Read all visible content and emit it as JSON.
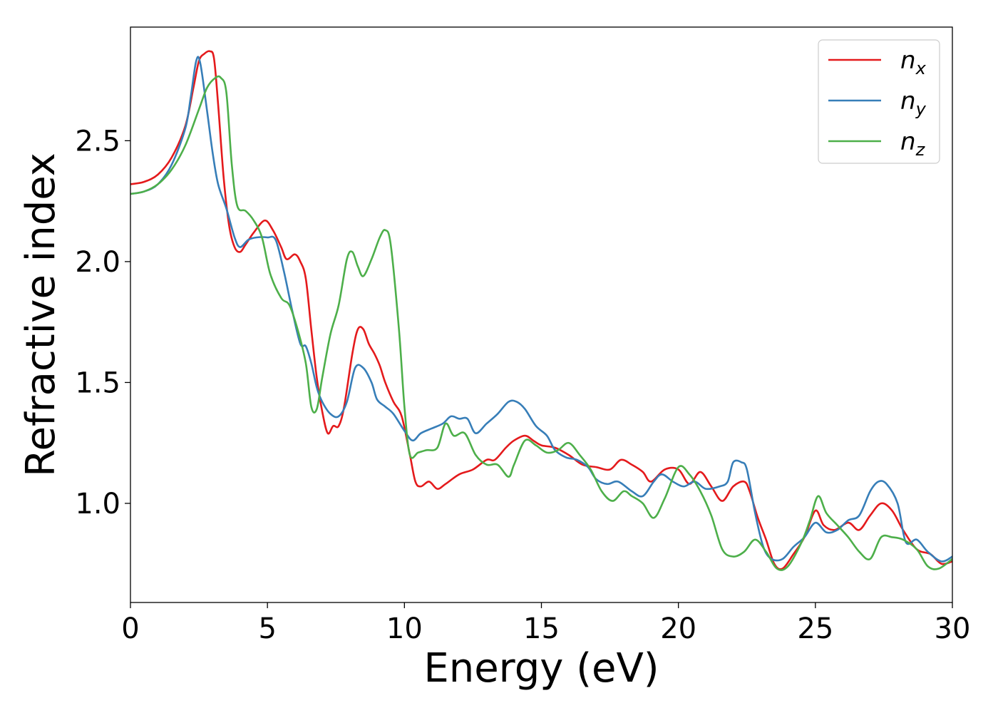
{
  "chart_data": {
    "type": "line",
    "title": "",
    "xlabel": "Energy (eV)",
    "ylabel": "Refractive index",
    "xlim": [
      0,
      30
    ],
    "ylim": [
      0.59,
      2.97
    ],
    "xticks": [
      0,
      5,
      10,
      15,
      20,
      25,
      30
    ],
    "yticks": [
      1.0,
      1.5,
      2.0,
      2.5
    ],
    "xtick_labels": [
      "0",
      "5",
      "10",
      "15",
      "20",
      "25",
      "30"
    ],
    "ytick_labels": [
      "1.0",
      "1.5",
      "2.0",
      "2.5"
    ],
    "grid": false,
    "legend_position": "top-right",
    "series": [
      {
        "name": "n",
        "subscript": "x",
        "color": "#e41a1c",
        "points": [
          [
            0,
            2.32
          ],
          [
            0.5,
            2.33
          ],
          [
            1.0,
            2.36
          ],
          [
            1.5,
            2.43
          ],
          [
            2.0,
            2.56
          ],
          [
            2.3,
            2.72
          ],
          [
            2.5,
            2.83
          ],
          [
            2.7,
            2.86
          ],
          [
            2.9,
            2.87
          ],
          [
            3.05,
            2.84
          ],
          [
            3.2,
            2.65
          ],
          [
            3.4,
            2.35
          ],
          [
            3.6,
            2.15
          ],
          [
            3.8,
            2.06
          ],
          [
            4.0,
            2.04
          ],
          [
            4.2,
            2.07
          ],
          [
            4.5,
            2.12
          ],
          [
            4.9,
            2.17
          ],
          [
            5.2,
            2.13
          ],
          [
            5.5,
            2.06
          ],
          [
            5.7,
            2.01
          ],
          [
            6.0,
            2.03
          ],
          [
            6.2,
            2.0
          ],
          [
            6.4,
            1.93
          ],
          [
            6.6,
            1.72
          ],
          [
            6.8,
            1.52
          ],
          [
            7.0,
            1.38
          ],
          [
            7.2,
            1.29
          ],
          [
            7.4,
            1.32
          ],
          [
            7.6,
            1.32
          ],
          [
            7.8,
            1.4
          ],
          [
            8.1,
            1.62
          ],
          [
            8.3,
            1.72
          ],
          [
            8.5,
            1.72
          ],
          [
            8.7,
            1.66
          ],
          [
            8.9,
            1.62
          ],
          [
            9.1,
            1.57
          ],
          [
            9.3,
            1.5
          ],
          [
            9.6,
            1.42
          ],
          [
            9.9,
            1.36
          ],
          [
            10.2,
            1.2
          ],
          [
            10.4,
            1.09
          ],
          [
            10.6,
            1.07
          ],
          [
            10.9,
            1.09
          ],
          [
            11.2,
            1.06
          ],
          [
            11.5,
            1.08
          ],
          [
            12.0,
            1.12
          ],
          [
            12.5,
            1.14
          ],
          [
            13.0,
            1.18
          ],
          [
            13.3,
            1.18
          ],
          [
            13.7,
            1.23
          ],
          [
            14.0,
            1.26
          ],
          [
            14.4,
            1.28
          ],
          [
            14.7,
            1.26
          ],
          [
            15.0,
            1.24
          ],
          [
            15.5,
            1.23
          ],
          [
            16.0,
            1.2
          ],
          [
            16.5,
            1.16
          ],
          [
            17.0,
            1.15
          ],
          [
            17.5,
            1.14
          ],
          [
            17.9,
            1.18
          ],
          [
            18.3,
            1.16
          ],
          [
            18.7,
            1.13
          ],
          [
            19.0,
            1.09
          ],
          [
            19.5,
            1.14
          ],
          [
            20.0,
            1.14
          ],
          [
            20.4,
            1.08
          ],
          [
            20.8,
            1.13
          ],
          [
            21.2,
            1.07
          ],
          [
            21.6,
            1.01
          ],
          [
            22.0,
            1.07
          ],
          [
            22.4,
            1.09
          ],
          [
            22.6,
            1.05
          ],
          [
            22.9,
            0.94
          ],
          [
            23.2,
            0.85
          ],
          [
            23.5,
            0.75
          ],
          [
            23.8,
            0.73
          ],
          [
            24.2,
            0.79
          ],
          [
            24.6,
            0.86
          ],
          [
            25.0,
            0.97
          ],
          [
            25.3,
            0.91
          ],
          [
            25.7,
            0.89
          ],
          [
            26.2,
            0.92
          ],
          [
            26.6,
            0.89
          ],
          [
            27.0,
            0.95
          ],
          [
            27.4,
            1.0
          ],
          [
            27.8,
            0.97
          ],
          [
            28.2,
            0.89
          ],
          [
            28.7,
            0.81
          ],
          [
            29.2,
            0.79
          ],
          [
            29.6,
            0.75
          ],
          [
            30.0,
            0.76
          ]
        ]
      },
      {
        "name": "n",
        "subscript": "y",
        "color": "#377eb8",
        "points": [
          [
            0,
            2.28
          ],
          [
            0.5,
            2.29
          ],
          [
            1.0,
            2.32
          ],
          [
            1.5,
            2.4
          ],
          [
            2.0,
            2.55
          ],
          [
            2.2,
            2.68
          ],
          [
            2.4,
            2.83
          ],
          [
            2.55,
            2.82
          ],
          [
            2.8,
            2.62
          ],
          [
            3.0,
            2.45
          ],
          [
            3.2,
            2.32
          ],
          [
            3.5,
            2.22
          ],
          [
            3.8,
            2.1
          ],
          [
            4.0,
            2.06
          ],
          [
            4.3,
            2.09
          ],
          [
            4.6,
            2.1
          ],
          [
            5.0,
            2.1
          ],
          [
            5.3,
            2.09
          ],
          [
            5.6,
            1.96
          ],
          [
            5.9,
            1.8
          ],
          [
            6.2,
            1.66
          ],
          [
            6.4,
            1.65
          ],
          [
            6.6,
            1.58
          ],
          [
            6.8,
            1.48
          ],
          [
            7.0,
            1.42
          ],
          [
            7.3,
            1.37
          ],
          [
            7.6,
            1.36
          ],
          [
            7.9,
            1.42
          ],
          [
            8.2,
            1.56
          ],
          [
            8.5,
            1.56
          ],
          [
            8.8,
            1.5
          ],
          [
            9.0,
            1.43
          ],
          [
            9.3,
            1.4
          ],
          [
            9.6,
            1.37
          ],
          [
            10.0,
            1.3
          ],
          [
            10.3,
            1.26
          ],
          [
            10.6,
            1.29
          ],
          [
            11.0,
            1.31
          ],
          [
            11.4,
            1.33
          ],
          [
            11.7,
            1.36
          ],
          [
            12.0,
            1.35
          ],
          [
            12.3,
            1.35
          ],
          [
            12.6,
            1.29
          ],
          [
            13.0,
            1.33
          ],
          [
            13.4,
            1.37
          ],
          [
            13.8,
            1.42
          ],
          [
            14.1,
            1.42
          ],
          [
            14.4,
            1.39
          ],
          [
            14.8,
            1.32
          ],
          [
            15.2,
            1.28
          ],
          [
            15.5,
            1.22
          ],
          [
            15.9,
            1.19
          ],
          [
            16.3,
            1.18
          ],
          [
            16.7,
            1.15
          ],
          [
            17.0,
            1.1
          ],
          [
            17.4,
            1.08
          ],
          [
            17.8,
            1.09
          ],
          [
            18.3,
            1.05
          ],
          [
            18.7,
            1.03
          ],
          [
            19.1,
            1.09
          ],
          [
            19.4,
            1.12
          ],
          [
            19.8,
            1.09
          ],
          [
            20.2,
            1.07
          ],
          [
            20.6,
            1.09
          ],
          [
            21.0,
            1.06
          ],
          [
            21.5,
            1.07
          ],
          [
            21.8,
            1.09
          ],
          [
            22.0,
            1.17
          ],
          [
            22.3,
            1.17
          ],
          [
            22.5,
            1.14
          ],
          [
            22.8,
            0.96
          ],
          [
            23.1,
            0.82
          ],
          [
            23.4,
            0.77
          ],
          [
            23.8,
            0.77
          ],
          [
            24.2,
            0.82
          ],
          [
            24.6,
            0.86
          ],
          [
            25.0,
            0.92
          ],
          [
            25.4,
            0.88
          ],
          [
            25.8,
            0.89
          ],
          [
            26.2,
            0.93
          ],
          [
            26.6,
            0.95
          ],
          [
            27.0,
            1.05
          ],
          [
            27.3,
            1.09
          ],
          [
            27.6,
            1.08
          ],
          [
            28.0,
            1.0
          ],
          [
            28.3,
            0.84
          ],
          [
            28.7,
            0.85
          ],
          [
            29.1,
            0.8
          ],
          [
            29.6,
            0.76
          ],
          [
            30.0,
            0.78
          ]
        ]
      },
      {
        "name": "n",
        "subscript": "z",
        "color": "#4daf4a",
        "points": [
          [
            0,
            2.28
          ],
          [
            0.5,
            2.29
          ],
          [
            1.0,
            2.32
          ],
          [
            1.5,
            2.38
          ],
          [
            2.0,
            2.48
          ],
          [
            2.5,
            2.63
          ],
          [
            2.8,
            2.72
          ],
          [
            3.1,
            2.76
          ],
          [
            3.3,
            2.76
          ],
          [
            3.5,
            2.7
          ],
          [
            3.7,
            2.4
          ],
          [
            3.9,
            2.23
          ],
          [
            4.2,
            2.21
          ],
          [
            4.5,
            2.17
          ],
          [
            4.8,
            2.1
          ],
          [
            5.1,
            1.95
          ],
          [
            5.5,
            1.85
          ],
          [
            5.8,
            1.82
          ],
          [
            6.1,
            1.72
          ],
          [
            6.4,
            1.58
          ],
          [
            6.6,
            1.4
          ],
          [
            6.8,
            1.39
          ],
          [
            7.0,
            1.52
          ],
          [
            7.3,
            1.7
          ],
          [
            7.6,
            1.82
          ],
          [
            7.9,
            2.01
          ],
          [
            8.1,
            2.04
          ],
          [
            8.3,
            1.98
          ],
          [
            8.5,
            1.94
          ],
          [
            8.8,
            2.01
          ],
          [
            9.1,
            2.1
          ],
          [
            9.3,
            2.13
          ],
          [
            9.5,
            2.07
          ],
          [
            9.8,
            1.72
          ],
          [
            10.0,
            1.4
          ],
          [
            10.2,
            1.2
          ],
          [
            10.5,
            1.21
          ],
          [
            10.8,
            1.22
          ],
          [
            11.2,
            1.23
          ],
          [
            11.5,
            1.33
          ],
          [
            11.8,
            1.28
          ],
          [
            12.2,
            1.29
          ],
          [
            12.6,
            1.2
          ],
          [
            13.0,
            1.16
          ],
          [
            13.4,
            1.16
          ],
          [
            13.8,
            1.11
          ],
          [
            14.0,
            1.16
          ],
          [
            14.4,
            1.26
          ],
          [
            14.8,
            1.24
          ],
          [
            15.2,
            1.21
          ],
          [
            15.6,
            1.22
          ],
          [
            16.0,
            1.25
          ],
          [
            16.4,
            1.2
          ],
          [
            16.8,
            1.14
          ],
          [
            17.2,
            1.05
          ],
          [
            17.6,
            1.01
          ],
          [
            18.0,
            1.05
          ],
          [
            18.3,
            1.03
          ],
          [
            18.7,
            1.0
          ],
          [
            19.1,
            0.94
          ],
          [
            19.5,
            1.02
          ],
          [
            20.0,
            1.15
          ],
          [
            20.4,
            1.12
          ],
          [
            20.8,
            1.05
          ],
          [
            21.2,
            0.95
          ],
          [
            21.6,
            0.81
          ],
          [
            22.0,
            0.78
          ],
          [
            22.4,
            0.8
          ],
          [
            22.8,
            0.85
          ],
          [
            23.2,
            0.8
          ],
          [
            23.6,
            0.73
          ],
          [
            24.0,
            0.74
          ],
          [
            24.5,
            0.84
          ],
          [
            24.8,
            0.93
          ],
          [
            25.1,
            1.03
          ],
          [
            25.4,
            0.96
          ],
          [
            25.8,
            0.91
          ],
          [
            26.2,
            0.86
          ],
          [
            26.6,
            0.8
          ],
          [
            27.0,
            0.77
          ],
          [
            27.4,
            0.86
          ],
          [
            27.8,
            0.86
          ],
          [
            28.2,
            0.85
          ],
          [
            28.7,
            0.81
          ],
          [
            29.1,
            0.74
          ],
          [
            29.5,
            0.73
          ],
          [
            30.0,
            0.77
          ]
        ]
      }
    ]
  }
}
